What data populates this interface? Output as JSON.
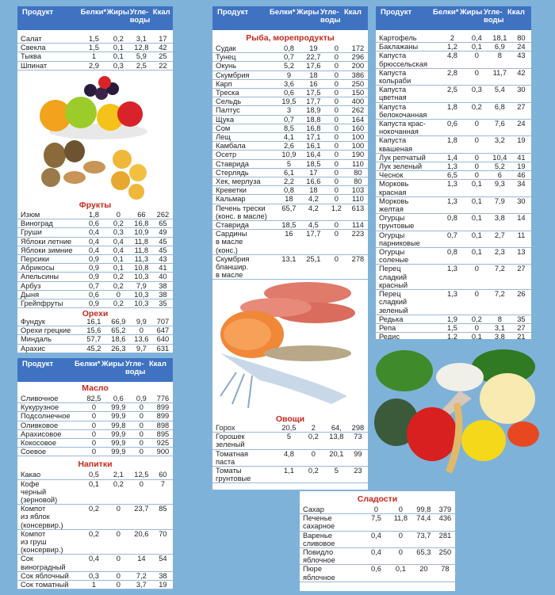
{
  "headers": {
    "product": "Продукт",
    "protein": "Белки*",
    "fat": "Жиры",
    "carbs": "Угле-\nводы",
    "kcal": "Ккал"
  },
  "col1": {
    "top": [
      [
        "Салат",
        "1,5",
        "0,2",
        "3,1",
        "17"
      ],
      [
        "Свекла",
        "1,5",
        "0,1",
        "12,8",
        "42"
      ],
      [
        "Тыква",
        "1",
        "0,1",
        "5,9",
        "25"
      ],
      [
        "Шпинат",
        "2,9",
        "0,3",
        "2,5",
        "22"
      ]
    ],
    "fruits_title": "Фрукты",
    "fruits": [
      [
        "Изюм",
        "1,8",
        "0",
        "66",
        "262"
      ],
      [
        "Виноград",
        "0,6",
        "0,2",
        "16,8",
        "65"
      ],
      [
        "Груши",
        "0,4",
        "0,3",
        "10,9",
        "49"
      ],
      [
        "Яблоки летние",
        "0,4",
        "0,4",
        "11,8",
        "45"
      ],
      [
        "Яблоки зимние",
        "0,4",
        "0,4",
        "11,8",
        "45"
      ],
      [
        "Персики",
        "0,9",
        "0,1",
        "11,3",
        "43"
      ],
      [
        "Абрикосы",
        "0,9",
        "0,1",
        "10,8",
        "41"
      ],
      [
        "Апельсины",
        "0,9",
        "0,2",
        "10,3",
        "40"
      ],
      [
        "Арбуз",
        "0,7",
        "0,2",
        "7,9",
        "38"
      ],
      [
        "Дыня",
        "0,6",
        "0",
        "10,3",
        "38"
      ],
      [
        "Грейпфруты",
        "0,9",
        "0,2",
        "10,3",
        "35"
      ]
    ],
    "nuts_title": "Орехи",
    "nuts": [
      [
        "Фундук",
        "16,1",
        "66,9",
        "9,9",
        "707"
      ],
      [
        "Орехи грецкие",
        "15,6",
        "65,2",
        "0",
        "647"
      ],
      [
        "Миндаль",
        "57,7",
        "18,6",
        "13,6",
        "640"
      ],
      [
        "Арахис",
        "45,2",
        "26,3",
        "9,7",
        "631"
      ]
    ]
  },
  "col1b": {
    "oil_title": "Масло",
    "oil": [
      [
        "Сливочное",
        "82,5",
        "0,6",
        "0,9",
        "776"
      ],
      [
        "Кукурузное",
        "0",
        "99,9",
        "0",
        "899"
      ],
      [
        "Подсолнечное",
        "0",
        "99,9",
        "0",
        "899"
      ],
      [
        "Оливковое",
        "0",
        "99,8",
        "0",
        "898"
      ],
      [
        "Арахисовое",
        "0",
        "99,9",
        "0",
        "895"
      ],
      [
        "Кокосовое",
        "0",
        "99,9",
        "0",
        "925"
      ],
      [
        "Соевое",
        "0",
        "99,9",
        "0",
        "900"
      ]
    ],
    "drinks_title": "Напитки",
    "drinks": [
      [
        "Какао",
        "0,5",
        "2,1",
        "12,5",
        "60"
      ],
      [
        "Кофе\nчерный\n(зерновой)",
        "0,1",
        "0,2",
        "0",
        "7"
      ],
      [
        "Компот\nиз яблок\n(консервир.)",
        "0,2",
        "0",
        "23,7",
        "85"
      ],
      [
        "Компот\nиз груш\n(консервир.)",
        "0,2",
        "0",
        "20,6",
        "70"
      ],
      [
        "Сок\nвиноградный",
        "0,4",
        "0",
        "14",
        "54"
      ],
      [
        "Сок яблочный",
        "0,3",
        "0",
        "7,2",
        "38"
      ],
      [
        "Сок томатный",
        "1",
        "0",
        "3,7",
        "19"
      ]
    ]
  },
  "col2": {
    "fish_title": "Рыба, морепродукты",
    "fish": [
      [
        "Судак",
        "0,8",
        "19",
        "0",
        "172"
      ],
      [
        "Тунец",
        "0,7",
        "22,7",
        "0",
        "296"
      ],
      [
        "Окунь",
        "5,2",
        "17,6",
        "0",
        "200"
      ],
      [
        "Скумбрия",
        "9",
        "18",
        "0",
        "386"
      ],
      [
        "Карп",
        "3,6",
        "16",
        "0",
        "250"
      ],
      [
        "Треска",
        "0,6",
        "17,5",
        "0",
        "150"
      ],
      [
        "Сельдь",
        "19,5",
        "17,7",
        "0",
        "400"
      ],
      [
        "Палтус",
        "3",
        "18,9",
        "0",
        "262"
      ],
      [
        "Щука",
        "0,7",
        "18,8",
        "0",
        "164"
      ],
      [
        "Сом",
        "8,5",
        "16,8",
        "0",
        "160"
      ],
      [
        "Лещ",
        "4,1",
        "17,1",
        "0",
        "100"
      ],
      [
        "Камбала",
        "2,6",
        "16,1",
        "0",
        "100"
      ],
      [
        "Осетр",
        "10,9",
        "16,4",
        "0",
        "190"
      ],
      [
        "Ставрида",
        "5",
        "18,5",
        "0",
        "110"
      ],
      [
        "Стерлядь",
        "6,1",
        "17",
        "0",
        "80"
      ],
      [
        "Хек, мерлуза",
        "2,2",
        "16,6",
        "0",
        "80"
      ],
      [
        "Креветки",
        "0,8",
        "18",
        "0",
        "103"
      ],
      [
        "Кальмар",
        "18",
        "4,2",
        "0",
        "110"
      ],
      [
        "Печень трески\n(конс. в масле)",
        "65,7",
        "4,2",
        "1,2",
        "613"
      ],
      [
        "Ставрида",
        "18,5",
        "4,5",
        "0",
        "114"
      ],
      [
        "Сардины\nв масле\n(конс.)",
        "16",
        "17,7",
        "0",
        "223"
      ],
      [
        "Скумбрия\nбланшир.\nв масле",
        "13,1",
        "25,1",
        "0",
        "278"
      ]
    ],
    "veg_title": "Овощи",
    "veg": [
      [
        "Горох",
        "20,5",
        "2",
        "64,",
        "298"
      ],
      [
        "Горошек\nзеленый",
        "5",
        "0,2",
        "13,8",
        "73"
      ],
      [
        "Томатная\nпаста",
        "4,8",
        "0",
        "20,1",
        "99"
      ],
      [
        "Томаты\nгрунтовые",
        "1,1",
        "0,2",
        "5",
        "23"
      ]
    ]
  },
  "col3": {
    "veg": [
      [
        "Картофель",
        "2",
        "0,4",
        "18,1",
        "80"
      ],
      [
        "Баклажаны",
        "1,2",
        "0,1",
        "6,9",
        "24"
      ],
      [
        "Капуста\nбрюссельская",
        "4,8",
        "0",
        "8",
        "43"
      ],
      [
        "Капуста\nкольраби",
        "2,8",
        "0",
        "11,7",
        "42"
      ],
      [
        "Капуста\nцветная",
        "2,5",
        "0,3",
        "5,4",
        "30"
      ],
      [
        "Капуста\nбелокочанная",
        "1,8",
        "0,2",
        "6,8",
        "27"
      ],
      [
        "Капуста крас-\nнокочанная",
        "0,6",
        "0",
        "7,6",
        "24"
      ],
      [
        "Капуста\nквашеная",
        "1,8",
        "0",
        "3,2",
        "19"
      ],
      [
        "Лук репчатый",
        "1,4",
        "0",
        "10,4",
        "41"
      ],
      [
        "Лук зеленый",
        "1,3",
        "0",
        "5,2",
        "19"
      ],
      [
        "Чеснок",
        "6,5",
        "0",
        "6",
        "46"
      ],
      [
        "Морковь\nкрасная",
        "1,3",
        "0,1",
        "9,3",
        "34"
      ],
      [
        "Морковь\nжелтая",
        "1,3",
        "0,1",
        "7,9",
        "30"
      ],
      [
        "Огурцы\nгрунтовые",
        "0,8",
        "0,1",
        "3,8",
        "14"
      ],
      [
        "Огурцы\nпарниковые",
        "0,7",
        "0,1",
        "2,7",
        "11"
      ],
      [
        "Огурцы\nсоленые",
        "0,8",
        "0,1",
        "2,3",
        "13"
      ],
      [
        "Перец\nсладкий\nкрасный",
        "1,3",
        "0",
        "7,2",
        "27"
      ],
      [
        "Перец\nсладкий\nзеленый",
        "1,3",
        "0",
        "7,2",
        "26"
      ],
      [
        "Редька",
        "1,9",
        "0,2",
        "8",
        "35"
      ],
      [
        "Репа",
        "1,5",
        "0",
        "3,1",
        "27"
      ],
      [
        "Редис",
        "1,2",
        "0,1",
        "3,8",
        "21"
      ]
    ]
  },
  "sweets": {
    "title": "Сладости",
    "rows": [
      [
        "Сахар",
        "0",
        "0",
        "99,8",
        "379"
      ],
      [
        "Печенье\nсахарное",
        "7,5",
        "11,8",
        "74,4",
        "436"
      ],
      [
        "Варенье\nсливовое",
        "0,4",
        "0",
        "73,7",
        "281"
      ],
      [
        "Повидло\nяблочное",
        "0,4",
        "0",
        "65,3",
        "250"
      ],
      [
        "Пюре\nяблочное",
        "0,6",
        "0,1",
        "20",
        "78"
      ]
    ]
  },
  "icons": [
    "fruit-bowl-image",
    "nuts-image",
    "fish-image",
    "vegetables-image"
  ],
  "colors": {
    "header": "#3f73c2",
    "section_title": "#c8281c",
    "background": "#7fb2d9"
  }
}
